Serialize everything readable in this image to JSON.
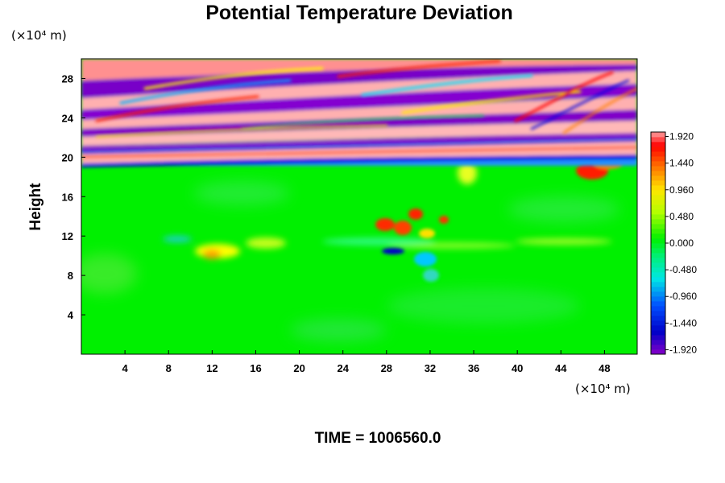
{
  "chart_data": {
    "type": "heatmap",
    "title": "Potential Temperature Deviation",
    "ylabel": "Height",
    "xlabel": "",
    "x_unit": "(×10⁴ m)",
    "y_unit": "(×10⁴ m)",
    "xlim": [
      0,
      51
    ],
    "ylim": [
      0,
      30
    ],
    "x_ticks": [
      4,
      8,
      12,
      16,
      20,
      24,
      28,
      32,
      36,
      40,
      44,
      48
    ],
    "y_ticks": [
      4,
      8,
      12,
      16,
      20,
      24,
      28
    ],
    "colorbar": {
      "min": -2.0,
      "max": 2.0,
      "tick_values": [
        1.92,
        1.44,
        0.96,
        0.48,
        0.0,
        -0.48,
        -0.96,
        -1.44,
        -1.92
      ],
      "tick_labels": [
        "1.920",
        "1.440",
        "0.960",
        "0.480",
        "0.000",
        "-0.480",
        "-0.960",
        "-1.440",
        "-1.920"
      ]
    },
    "grid": false,
    "annotation": "TIME = 1006560.0"
  }
}
